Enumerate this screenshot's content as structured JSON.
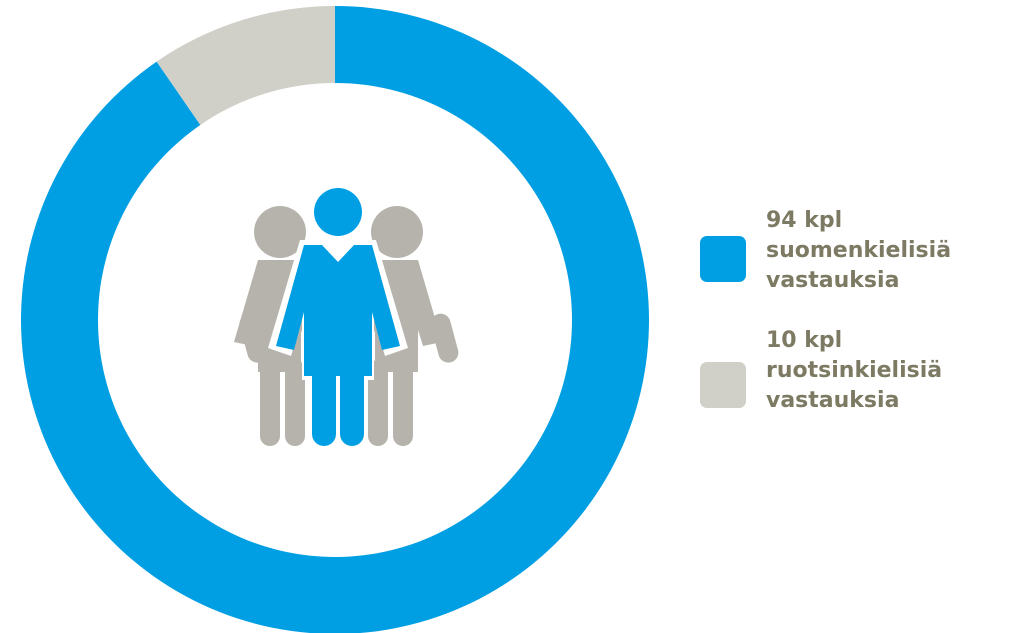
{
  "chart_data": {
    "type": "pie",
    "style": "donut",
    "categories": [
      "suomenkielisiä vastauksia",
      "ruotsinkielisiä vastauksia"
    ],
    "values": [
      94,
      10
    ],
    "unit": "kpl",
    "colors": [
      "#009fe3",
      "#d0cfc8"
    ],
    "legend_placement": "right",
    "center_icon": "group-of-people-icon"
  },
  "legend": [
    {
      "count": "94 kpl",
      "line1": "suomenkielisiä",
      "line2": "vastauksia",
      "color": "#009fe3"
    },
    {
      "count": "10 kpl",
      "line1": "ruotsinkielisiä",
      "line2": "vastauksia",
      "color": "#d0cfc8"
    }
  ],
  "colors": {
    "text": "#7d7a63",
    "person_gray": "#b5b3ab",
    "person_blue": "#009fe3"
  }
}
